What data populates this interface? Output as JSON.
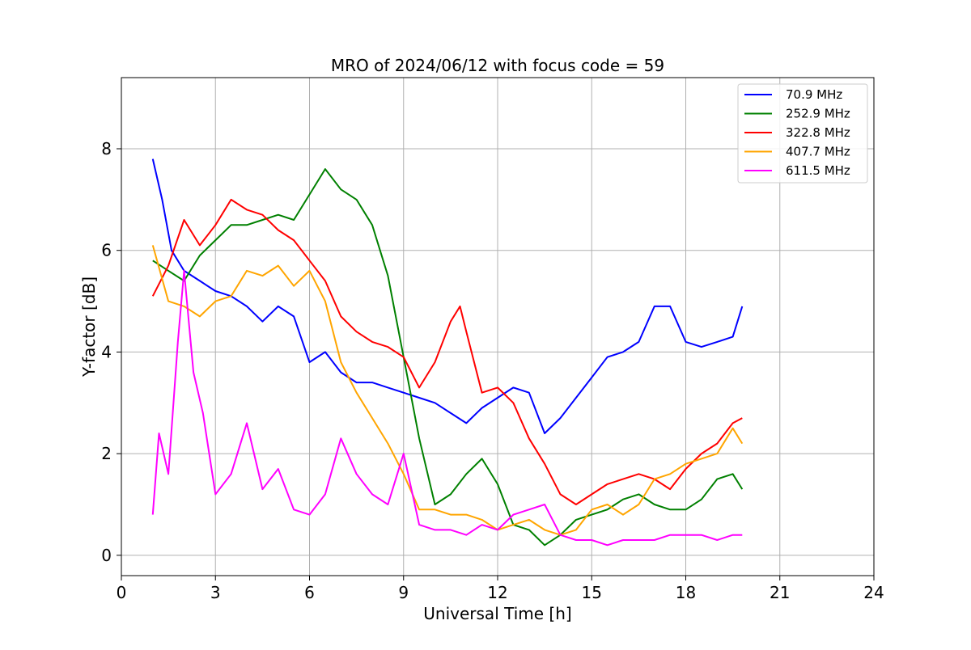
{
  "chart_data": {
    "type": "line",
    "title": "MRO of 2024/06/12 with focus code = 59",
    "xlabel": "Universal Time [h]",
    "ylabel": "Y-factor [dB]",
    "xlim": [
      0,
      24
    ],
    "ylim": [
      -0.4,
      9.4
    ],
    "xticks": [
      0,
      3,
      6,
      9,
      12,
      15,
      18,
      21,
      24
    ],
    "yticks": [
      0,
      2,
      4,
      6,
      8
    ],
    "grid": true,
    "legend_position": "top-right",
    "series": [
      {
        "name": " 70.9 MHz",
        "color": "#0000ff",
        "x": [
          1.0,
          1.3,
          1.6,
          2.0,
          2.5,
          3.0,
          3.5,
          4.0,
          4.5,
          5.0,
          5.5,
          6.0,
          6.5,
          7.0,
          7.5,
          8.0,
          8.5,
          9.0,
          9.5,
          10.0,
          10.5,
          11.0,
          11.5,
          12.0,
          12.5,
          13.0,
          13.5,
          14.0,
          14.5,
          15.0,
          15.5,
          16.0,
          16.5,
          17.0,
          17.5,
          18.0,
          18.5,
          19.0,
          19.5,
          19.8
        ],
        "y": [
          7.8,
          7.0,
          6.0,
          5.6,
          5.4,
          5.2,
          5.1,
          4.9,
          4.6,
          4.9,
          4.7,
          3.8,
          4.0,
          3.6,
          3.4,
          3.4,
          3.3,
          3.2,
          3.1,
          3.0,
          2.8,
          2.6,
          2.9,
          3.1,
          3.3,
          3.2,
          2.4,
          2.7,
          3.1,
          3.5,
          3.9,
          4.0,
          4.2,
          4.9,
          4.9,
          4.2,
          4.1,
          4.2,
          4.3,
          4.9
        ]
      },
      {
        "name": "252.9 MHz",
        "color": "#008000",
        "x": [
          1.0,
          1.5,
          2.0,
          2.5,
          3.0,
          3.5,
          4.0,
          4.5,
          5.0,
          5.5,
          6.0,
          6.5,
          7.0,
          7.5,
          8.0,
          8.5,
          9.0,
          9.5,
          10.0,
          10.5,
          11.0,
          11.5,
          12.0,
          12.5,
          13.0,
          13.5,
          14.0,
          14.5,
          15.0,
          15.5,
          16.0,
          16.5,
          17.0,
          17.5,
          18.0,
          18.5,
          19.0,
          19.5,
          19.8
        ],
        "y": [
          5.8,
          5.6,
          5.4,
          5.9,
          6.2,
          6.5,
          6.5,
          6.6,
          6.7,
          6.6,
          7.1,
          7.6,
          7.2,
          7.0,
          6.5,
          5.5,
          3.9,
          2.3,
          1.0,
          1.2,
          1.6,
          1.9,
          1.4,
          0.6,
          0.5,
          0.2,
          0.4,
          0.7,
          0.8,
          0.9,
          1.1,
          1.2,
          1.0,
          0.9,
          0.9,
          1.1,
          1.5,
          1.6,
          1.3
        ]
      },
      {
        "name": "322.8 MHz",
        "color": "#ff0000",
        "x": [
          1.0,
          1.5,
          2.0,
          2.5,
          3.0,
          3.5,
          4.0,
          4.5,
          5.0,
          5.5,
          6.0,
          6.5,
          7.0,
          7.5,
          8.0,
          8.5,
          9.0,
          9.5,
          10.0,
          10.5,
          10.8,
          11.0,
          11.5,
          12.0,
          12.5,
          13.0,
          13.5,
          14.0,
          14.5,
          15.0,
          15.5,
          16.0,
          16.5,
          17.0,
          17.5,
          18.0,
          18.5,
          19.0,
          19.5,
          19.8
        ],
        "y": [
          5.1,
          5.7,
          6.6,
          6.1,
          6.5,
          7.0,
          6.8,
          6.7,
          6.4,
          6.2,
          5.8,
          5.4,
          4.7,
          4.4,
          4.2,
          4.1,
          3.9,
          3.3,
          3.8,
          4.6,
          4.9,
          4.4,
          3.2,
          3.3,
          3.0,
          2.3,
          1.8,
          1.2,
          1.0,
          1.2,
          1.4,
          1.5,
          1.6,
          1.5,
          1.3,
          1.7,
          2.0,
          2.2,
          2.6,
          2.7
        ]
      },
      {
        "name": "407.7 MHz",
        "color": "#ffa500",
        "x": [
          1.0,
          1.5,
          2.0,
          2.5,
          3.0,
          3.5,
          4.0,
          4.5,
          5.0,
          5.5,
          6.0,
          6.5,
          7.0,
          7.5,
          8.0,
          8.5,
          9.0,
          9.5,
          10.0,
          10.5,
          11.0,
          11.5,
          12.0,
          12.5,
          13.0,
          13.5,
          14.0,
          14.5,
          15.0,
          15.5,
          16.0,
          16.5,
          17.0,
          17.5,
          18.0,
          18.5,
          19.0,
          19.5,
          19.8
        ],
        "y": [
          6.1,
          5.0,
          4.9,
          4.7,
          5.0,
          5.1,
          5.6,
          5.5,
          5.7,
          5.3,
          5.6,
          5.0,
          3.8,
          3.2,
          2.7,
          2.2,
          1.6,
          0.9,
          0.9,
          0.8,
          0.8,
          0.7,
          0.5,
          0.6,
          0.7,
          0.5,
          0.4,
          0.5,
          0.9,
          1.0,
          0.8,
          1.0,
          1.5,
          1.6,
          1.8,
          1.9,
          2.0,
          2.5,
          2.2
        ]
      },
      {
        "name": "611.5 MHz",
        "color": "#ff00ff",
        "x": [
          1.0,
          1.2,
          1.5,
          1.8,
          2.0,
          2.3,
          2.6,
          3.0,
          3.5,
          4.0,
          4.5,
          5.0,
          5.5,
          6.0,
          6.5,
          7.0,
          7.5,
          8.0,
          8.5,
          9.0,
          9.5,
          10.0,
          10.5,
          11.0,
          11.5,
          12.0,
          12.5,
          13.0,
          13.5,
          14.0,
          14.5,
          15.0,
          15.5,
          16.0,
          16.5,
          17.0,
          17.5,
          18.0,
          18.5,
          19.0,
          19.5,
          19.8
        ],
        "y": [
          0.8,
          2.4,
          1.6,
          4.2,
          5.6,
          3.6,
          2.8,
          1.2,
          1.6,
          2.6,
          1.3,
          1.7,
          0.9,
          0.8,
          1.2,
          2.3,
          1.6,
          1.2,
          1.0,
          2.0,
          0.6,
          0.5,
          0.5,
          0.4,
          0.6,
          0.5,
          0.8,
          0.9,
          1.0,
          0.4,
          0.3,
          0.3,
          0.2,
          0.3,
          0.3,
          0.3,
          0.4,
          0.4,
          0.4,
          0.3,
          0.4,
          0.4
        ]
      }
    ]
  }
}
